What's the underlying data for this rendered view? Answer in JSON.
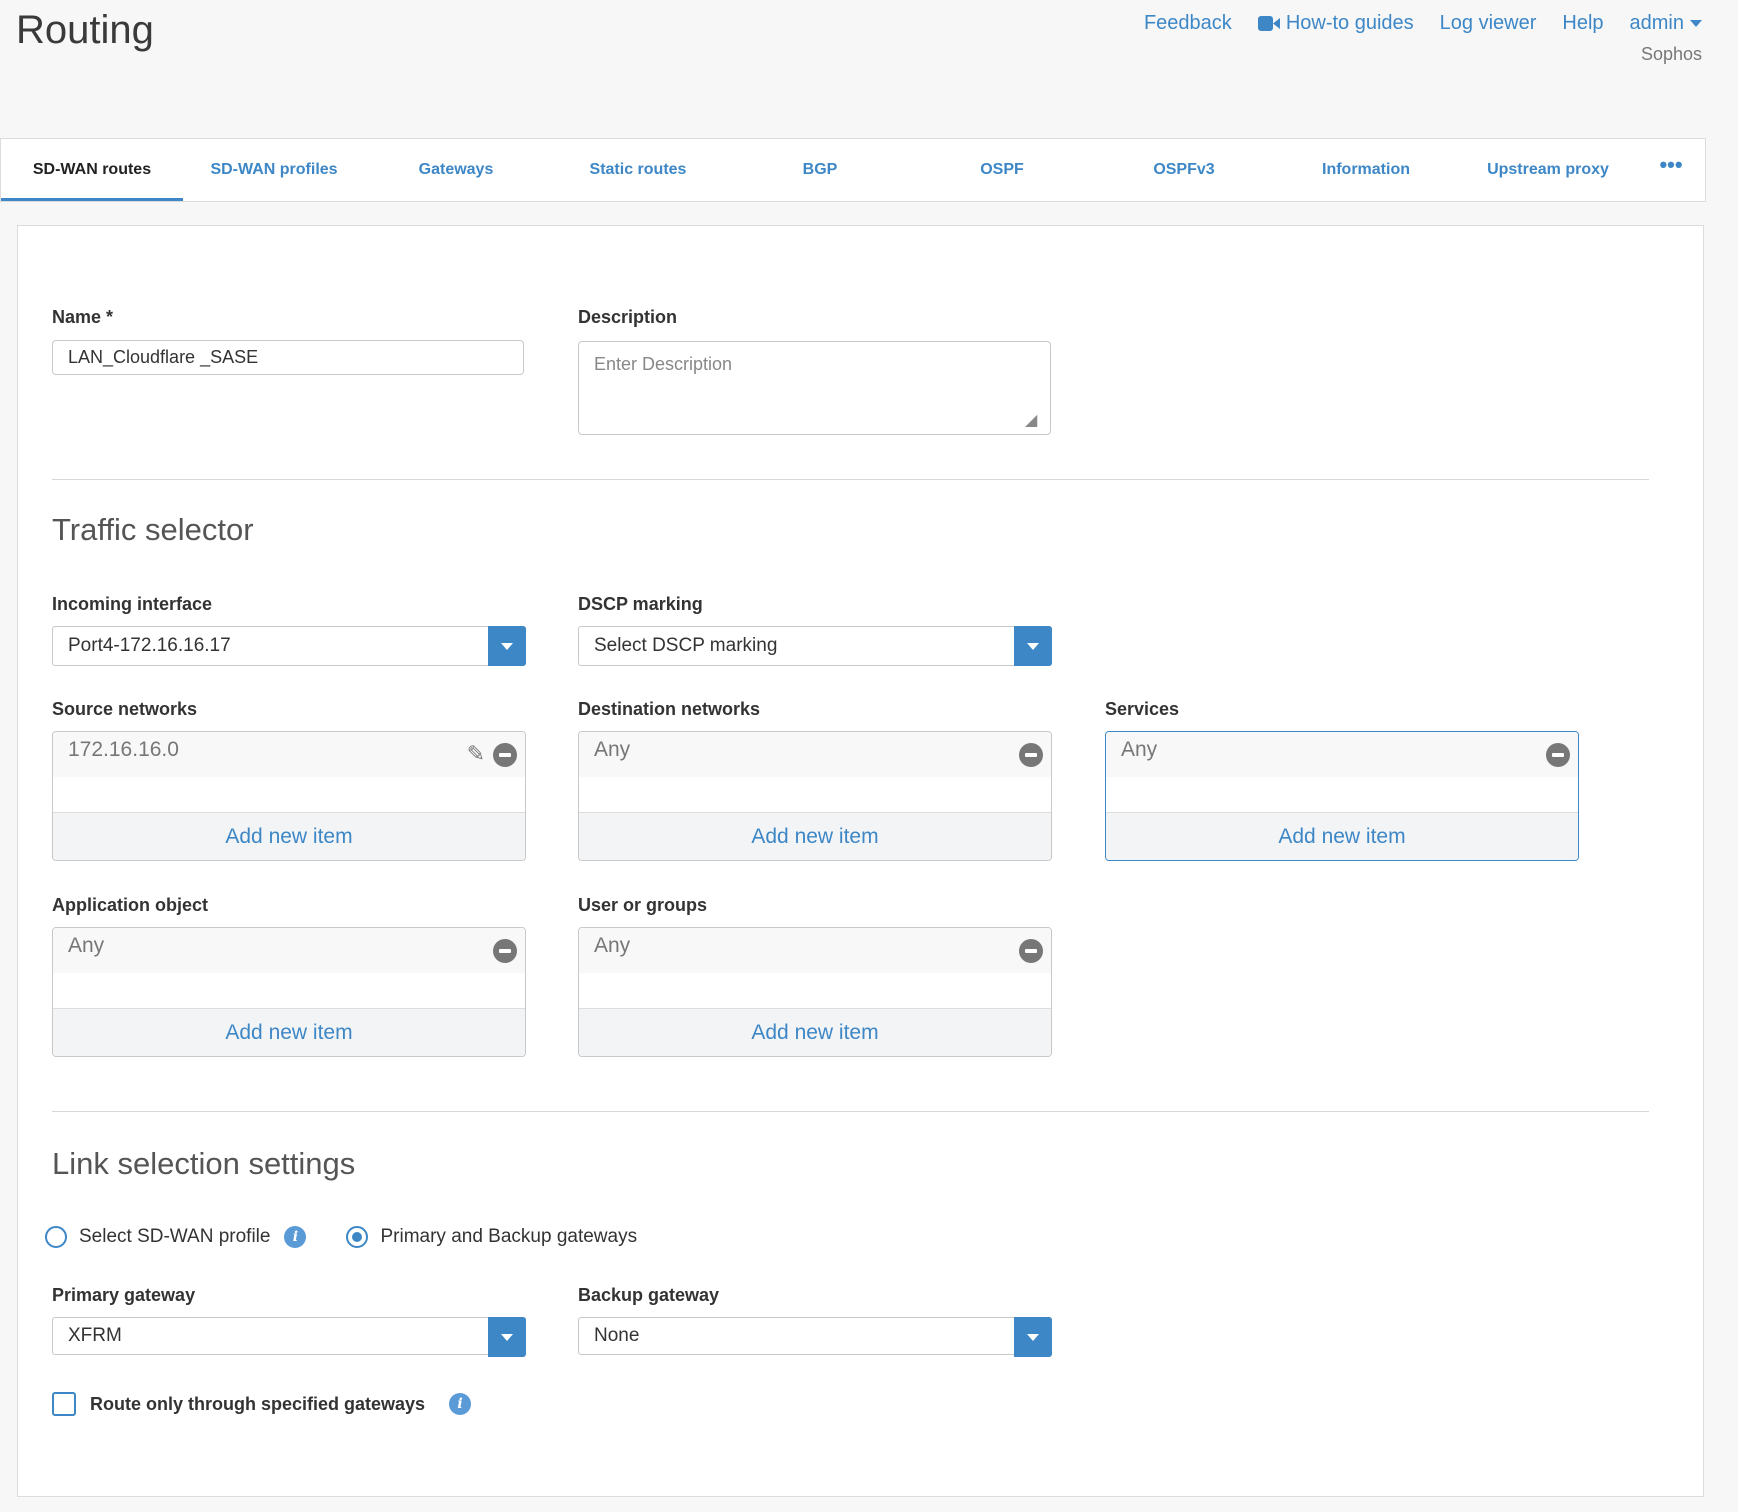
{
  "header": {
    "title": "Routing",
    "links": [
      "Feedback",
      "How-to guides",
      "Log viewer",
      "Help",
      "admin"
    ],
    "subtitle": "Sophos"
  },
  "tabs": [
    "SD-WAN routes",
    "SD-WAN profiles",
    "Gateways",
    "Static routes",
    "BGP",
    "OSPF",
    "OSPFv3",
    "Information",
    "Upstream proxy"
  ],
  "form": {
    "name_label": "Name *",
    "name_value": "LAN_Cloudflare _SASE",
    "description_label": "Description",
    "description_placeholder": "Enter Description",
    "traffic_heading": "Traffic selector",
    "incoming_label": "Incoming interface",
    "incoming_value": "Port4-172.16.16.17",
    "dscp_label": "DSCP marking",
    "dscp_value": "Select DSCP marking",
    "source_label": "Source networks",
    "source_item": "172.16.16.0",
    "dest_label": "Destination networks",
    "dest_item": "Any",
    "services_label": "Services",
    "services_item": "Any",
    "app_label": "Application object",
    "app_item": "Any",
    "users_label": "User or groups",
    "users_item": "Any",
    "add_label": "Add new item",
    "link_heading": "Link selection settings",
    "radio_profile": "Select SD-WAN profile",
    "radio_gateways": "Primary and Backup gateways",
    "selected_radio": "Primary and Backup gateways",
    "primary_label": "Primary gateway",
    "primary_value": "XFRM",
    "backup_label": "Backup gateway",
    "backup_value": "None",
    "route_only_label": "Route only through specified gateways",
    "route_only_checked": false
  },
  "colors": {
    "accent": "#3d87c6"
  }
}
